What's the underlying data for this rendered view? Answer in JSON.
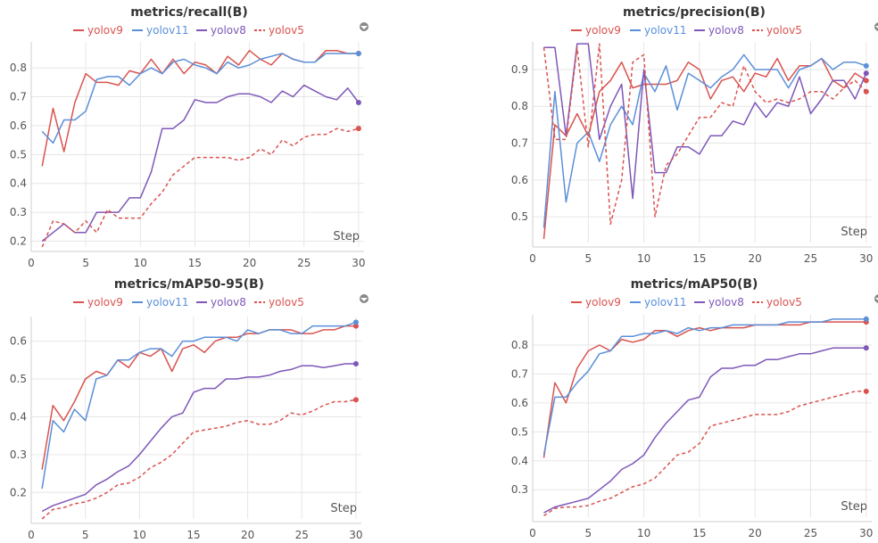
{
  "colors": {
    "yolov9": "#d9534f",
    "yolov11": "#5b8fd9",
    "yolov8": "#7e57b8",
    "yolov5": "#d9534f"
  },
  "step_label": "Step",
  "chart_data": [
    {
      "type": "line",
      "title": "metrics/recall(B)",
      "x_ticks": [
        0,
        5,
        10,
        15,
        20,
        25,
        30
      ],
      "y_ticks": [
        0.2,
        0.3,
        0.4,
        0.5,
        0.6,
        0.7,
        0.8
      ],
      "xlim": [
        0,
        30.5
      ],
      "ylim": [
        0.18,
        0.89
      ],
      "series": [
        {
          "name": "yolov9",
          "dashed": false,
          "values": [
            0.46,
            0.66,
            0.51,
            0.68,
            0.78,
            0.75,
            0.75,
            0.74,
            0.79,
            0.78,
            0.83,
            0.78,
            0.83,
            0.78,
            0.82,
            0.81,
            0.78,
            0.84,
            0.81,
            0.86,
            0.83,
            0.81,
            0.85,
            0.83,
            0.82,
            0.82,
            0.86,
            0.86,
            0.85,
            0.85
          ]
        },
        {
          "name": "yolov11",
          "dashed": false,
          "values": [
            0.58,
            0.54,
            0.62,
            0.62,
            0.65,
            0.76,
            0.77,
            0.77,
            0.74,
            0.78,
            0.8,
            0.78,
            0.82,
            0.83,
            0.81,
            0.8,
            0.78,
            0.82,
            0.8,
            0.81,
            0.83,
            0.84,
            0.85,
            0.83,
            0.82,
            0.82,
            0.85,
            0.85,
            0.85,
            0.85
          ]
        },
        {
          "name": "yolov8",
          "dashed": false,
          "values": [
            0.2,
            0.23,
            0.26,
            0.23,
            0.23,
            0.3,
            0.3,
            0.3,
            0.35,
            0.35,
            0.44,
            0.59,
            0.59,
            0.62,
            0.69,
            0.68,
            0.68,
            0.7,
            0.71,
            0.71,
            0.7,
            0.68,
            0.72,
            0.7,
            0.74,
            0.72,
            0.7,
            0.69,
            0.73,
            0.68
          ]
        },
        {
          "name": "yolov5",
          "dashed": true,
          "values": [
            0.18,
            0.27,
            0.26,
            0.23,
            0.27,
            0.23,
            0.31,
            0.28,
            0.28,
            0.28,
            0.33,
            0.37,
            0.43,
            0.46,
            0.49,
            0.49,
            0.49,
            0.49,
            0.48,
            0.49,
            0.52,
            0.5,
            0.55,
            0.53,
            0.56,
            0.57,
            0.57,
            0.59,
            0.58,
            0.59
          ]
        }
      ]
    },
    {
      "type": "line",
      "title": "metrics/precision(B)",
      "x_ticks": [
        0,
        5,
        10,
        15,
        20,
        25,
        30
      ],
      "y_ticks": [
        0.5,
        0.6,
        0.7,
        0.8,
        0.9
      ],
      "xlim": [
        0,
        30.5
      ],
      "ylim": [
        0.43,
        0.975
      ],
      "series": [
        {
          "name": "yolov9",
          "dashed": false,
          "values": [
            0.44,
            0.75,
            0.72,
            0.78,
            0.72,
            0.84,
            0.87,
            0.92,
            0.85,
            0.86,
            0.86,
            0.86,
            0.87,
            0.92,
            0.9,
            0.82,
            0.87,
            0.88,
            0.84,
            0.89,
            0.88,
            0.93,
            0.87,
            0.91,
            0.91,
            0.93,
            0.87,
            0.85,
            0.89,
            0.87
          ]
        },
        {
          "name": "yolov11",
          "dashed": false,
          "values": [
            0.47,
            0.84,
            0.54,
            0.7,
            0.73,
            0.65,
            0.75,
            0.8,
            0.75,
            0.89,
            0.84,
            0.91,
            0.79,
            0.89,
            0.87,
            0.85,
            0.88,
            0.9,
            0.94,
            0.9,
            0.9,
            0.9,
            0.85,
            0.9,
            0.91,
            0.93,
            0.9,
            0.92,
            0.92,
            0.91
          ]
        },
        {
          "name": "yolov8",
          "dashed": false,
          "values": [
            0.96,
            0.96,
            0.72,
            0.97,
            0.97,
            0.71,
            0.8,
            0.86,
            0.55,
            0.9,
            0.62,
            0.62,
            0.69,
            0.69,
            0.67,
            0.72,
            0.72,
            0.76,
            0.75,
            0.81,
            0.77,
            0.81,
            0.8,
            0.88,
            0.78,
            0.82,
            0.87,
            0.87,
            0.82,
            0.89
          ]
        },
        {
          "name": "yolov5",
          "dashed": true,
          "values": [
            0.96,
            0.71,
            0.71,
            0.96,
            0.69,
            0.97,
            0.48,
            0.6,
            0.92,
            0.94,
            0.5,
            0.64,
            0.67,
            0.72,
            0.77,
            0.77,
            0.81,
            0.8,
            0.91,
            0.84,
            0.81,
            0.82,
            0.81,
            0.82,
            0.84,
            0.84,
            0.82,
            0.85,
            0.87,
            0.84
          ]
        }
      ]
    },
    {
      "type": "line",
      "title": "metrics/mAP50-95(B)",
      "x_ticks": [
        0,
        5,
        10,
        15,
        20,
        25,
        30
      ],
      "y_ticks": [
        0.2,
        0.3,
        0.4,
        0.5,
        0.6
      ],
      "xlim": [
        0,
        30.5
      ],
      "ylim": [
        0.13,
        0.665
      ],
      "series": [
        {
          "name": "yolov9",
          "dashed": false,
          "values": [
            0.26,
            0.43,
            0.39,
            0.44,
            0.5,
            0.52,
            0.51,
            0.55,
            0.53,
            0.57,
            0.56,
            0.58,
            0.52,
            0.58,
            0.59,
            0.57,
            0.6,
            0.61,
            0.61,
            0.62,
            0.62,
            0.63,
            0.63,
            0.63,
            0.62,
            0.62,
            0.63,
            0.63,
            0.64,
            0.64
          ]
        },
        {
          "name": "yolov11",
          "dashed": false,
          "values": [
            0.21,
            0.39,
            0.36,
            0.42,
            0.39,
            0.5,
            0.51,
            0.55,
            0.55,
            0.57,
            0.58,
            0.58,
            0.56,
            0.6,
            0.6,
            0.61,
            0.61,
            0.61,
            0.6,
            0.63,
            0.62,
            0.63,
            0.63,
            0.62,
            0.62,
            0.64,
            0.64,
            0.64,
            0.64,
            0.65
          ]
        },
        {
          "name": "yolov8",
          "dashed": false,
          "values": [
            0.15,
            0.165,
            0.175,
            0.185,
            0.195,
            0.22,
            0.235,
            0.255,
            0.27,
            0.3,
            0.335,
            0.37,
            0.4,
            0.41,
            0.465,
            0.475,
            0.475,
            0.5,
            0.5,
            0.505,
            0.505,
            0.51,
            0.52,
            0.525,
            0.535,
            0.535,
            0.53,
            0.535,
            0.54,
            0.54
          ]
        },
        {
          "name": "yolov5",
          "dashed": true,
          "values": [
            0.13,
            0.155,
            0.16,
            0.17,
            0.175,
            0.185,
            0.2,
            0.22,
            0.225,
            0.24,
            0.265,
            0.28,
            0.3,
            0.33,
            0.36,
            0.365,
            0.37,
            0.375,
            0.385,
            0.39,
            0.38,
            0.38,
            0.39,
            0.41,
            0.405,
            0.415,
            0.43,
            0.44,
            0.44,
            0.445
          ]
        }
      ]
    },
    {
      "type": "line",
      "title": "metrics/mAP50(B)",
      "x_ticks": [
        0,
        5,
        10,
        15,
        20,
        25,
        30
      ],
      "y_ticks": [
        0.3,
        0.4,
        0.5,
        0.6,
        0.7,
        0.8
      ],
      "xlim": [
        0,
        30.5
      ],
      "ylim": [
        0.205,
        0.905
      ],
      "series": [
        {
          "name": "yolov9",
          "dashed": false,
          "values": [
            0.41,
            0.67,
            0.6,
            0.72,
            0.78,
            0.8,
            0.78,
            0.82,
            0.81,
            0.82,
            0.85,
            0.85,
            0.83,
            0.85,
            0.86,
            0.85,
            0.86,
            0.86,
            0.86,
            0.87,
            0.87,
            0.87,
            0.87,
            0.87,
            0.88,
            0.88,
            0.88,
            0.88,
            0.88,
            0.88
          ]
        },
        {
          "name": "yolov11",
          "dashed": false,
          "values": [
            0.42,
            0.62,
            0.62,
            0.67,
            0.71,
            0.77,
            0.78,
            0.83,
            0.83,
            0.84,
            0.84,
            0.85,
            0.84,
            0.86,
            0.85,
            0.86,
            0.86,
            0.87,
            0.87,
            0.87,
            0.87,
            0.87,
            0.88,
            0.88,
            0.88,
            0.88,
            0.89,
            0.89,
            0.89,
            0.89
          ]
        },
        {
          "name": "yolov8",
          "dashed": false,
          "values": [
            0.22,
            0.24,
            0.25,
            0.26,
            0.27,
            0.3,
            0.33,
            0.37,
            0.39,
            0.42,
            0.48,
            0.53,
            0.57,
            0.61,
            0.62,
            0.69,
            0.72,
            0.72,
            0.73,
            0.73,
            0.75,
            0.75,
            0.76,
            0.77,
            0.77,
            0.78,
            0.79,
            0.79,
            0.79,
            0.79
          ]
        },
        {
          "name": "yolov5",
          "dashed": true,
          "values": [
            0.21,
            0.235,
            0.24,
            0.24,
            0.245,
            0.26,
            0.27,
            0.29,
            0.31,
            0.32,
            0.34,
            0.38,
            0.42,
            0.43,
            0.46,
            0.52,
            0.53,
            0.54,
            0.55,
            0.56,
            0.56,
            0.56,
            0.57,
            0.59,
            0.6,
            0.61,
            0.62,
            0.63,
            0.64,
            0.64
          ]
        }
      ]
    }
  ]
}
